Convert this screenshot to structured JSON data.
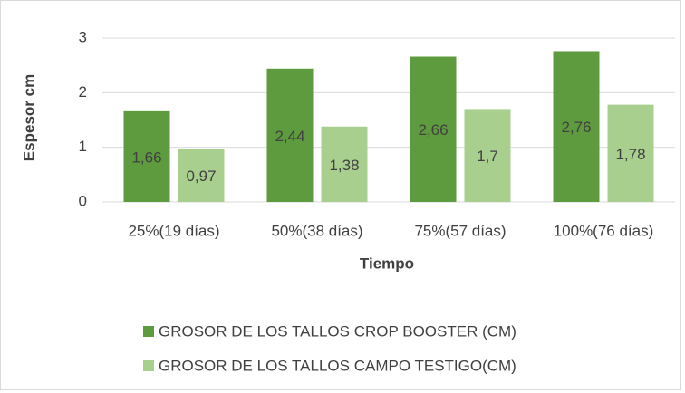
{
  "chart_data": {
    "type": "bar",
    "y_label": "Espesor cm",
    "x_label": "Tiempo",
    "categories": [
      "25%(19 días)",
      "50%(38 días)",
      "75%(57 días)",
      "100%(76 días)"
    ],
    "series": [
      {
        "name": "GROSOR DE LOS TALLOS CROP BOOSTER (CM)",
        "color": "#5e9a3e",
        "values": [
          1.66,
          2.44,
          2.66,
          2.76
        ],
        "value_labels": [
          "1,66",
          "2,44",
          "2,66",
          "2,76"
        ]
      },
      {
        "name": "GROSOR DE LOS TALLOS CAMPO TESTIGO(CM)",
        "color": "#a9cf8e",
        "values": [
          0.97,
          1.38,
          1.7,
          1.78
        ],
        "value_labels": [
          "0,97",
          "1,38",
          "1,7",
          "1,78"
        ]
      }
    ],
    "ylim": [
      0,
      3
    ],
    "yticks": [
      0,
      1,
      2,
      3
    ],
    "grid": true,
    "legend": "bottom"
  }
}
